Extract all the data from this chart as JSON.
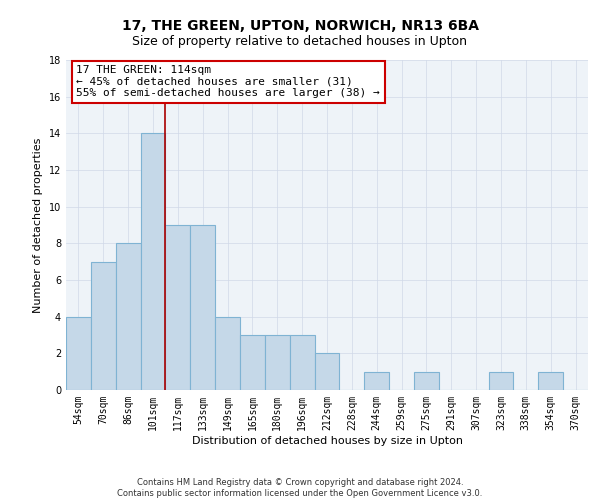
{
  "title": "17, THE GREEN, UPTON, NORWICH, NR13 6BA",
  "subtitle": "Size of property relative to detached houses in Upton",
  "xlabel": "Distribution of detached houses by size in Upton",
  "ylabel": "Number of detached properties",
  "bar_labels": [
    "54sqm",
    "70sqm",
    "86sqm",
    "101sqm",
    "117sqm",
    "133sqm",
    "149sqm",
    "165sqm",
    "180sqm",
    "196sqm",
    "212sqm",
    "228sqm",
    "244sqm",
    "259sqm",
    "275sqm",
    "291sqm",
    "307sqm",
    "323sqm",
    "338sqm",
    "354sqm",
    "370sqm"
  ],
  "bar_values": [
    4,
    7,
    8,
    14,
    9,
    9,
    4,
    3,
    3,
    3,
    2,
    0,
    1,
    0,
    1,
    0,
    0,
    1,
    0,
    1,
    0
  ],
  "bar_color": "#c5d8e8",
  "bar_edgecolor": "#7fb3d3",
  "bar_linewidth": 0.8,
  "vline_x_index": 3,
  "vline_color": "#aa0000",
  "annotation_title": "17 THE GREEN: 114sqm",
  "annotation_line1": "← 45% of detached houses are smaller (31)",
  "annotation_line2": "55% of semi-detached houses are larger (38) →",
  "annotation_box_edgecolor": "#cc0000",
  "annotation_box_facecolor": "#ffffff",
  "ylim": [
    0,
    18
  ],
  "yticks": [
    0,
    2,
    4,
    6,
    8,
    10,
    12,
    14,
    16,
    18
  ],
  "grid_color": "#d0d8e8",
  "background_color": "#eef3f8",
  "footer_line1": "Contains HM Land Registry data © Crown copyright and database right 2024.",
  "footer_line2": "Contains public sector information licensed under the Open Government Licence v3.0.",
  "title_fontsize": 10,
  "xlabel_fontsize": 8,
  "ylabel_fontsize": 8,
  "tick_fontsize": 7,
  "footer_fontsize": 6,
  "annotation_fontsize": 8
}
